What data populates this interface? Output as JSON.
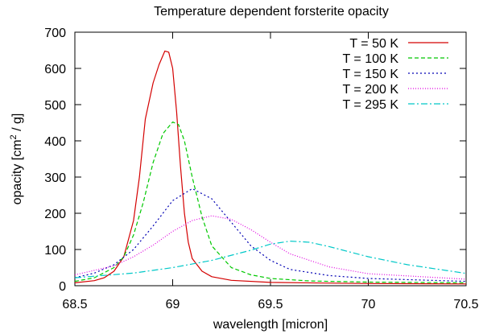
{
  "chart_data": {
    "type": "line",
    "title": "Temperature dependent forsterite opacity",
    "xlabel": "wavelength [micron]",
    "ylabel_main": "opacity [cm",
    "ylabel_sup": "2",
    "ylabel_tail": " / g]",
    "xlim": [
      68.5,
      70.5
    ],
    "ylim": [
      0,
      700
    ],
    "xticks": [
      68.5,
      69,
      69.5,
      70,
      70.5
    ],
    "xtick_labels": [
      "68.5",
      "69",
      "69.5",
      "70",
      "70.5"
    ],
    "yticks": [
      0,
      100,
      200,
      300,
      400,
      500,
      600,
      700
    ],
    "ytick_labels": [
      "0",
      "100",
      "200",
      "300",
      "400",
      "500",
      "600",
      "700"
    ],
    "legend_position": "top-right",
    "series": [
      {
        "name": "T = 50 K",
        "color": "#d40000",
        "dash": "",
        "points": [
          [
            68.5,
            8
          ],
          [
            68.6,
            14
          ],
          [
            68.65,
            22
          ],
          [
            68.7,
            40
          ],
          [
            68.75,
            80
          ],
          [
            68.8,
            180
          ],
          [
            68.83,
            300
          ],
          [
            68.86,
            460
          ],
          [
            68.9,
            560
          ],
          [
            68.93,
            610
          ],
          [
            68.96,
            648
          ],
          [
            68.98,
            645
          ],
          [
            69.0,
            600
          ],
          [
            69.02,
            480
          ],
          [
            69.04,
            330
          ],
          [
            69.06,
            200
          ],
          [
            69.08,
            120
          ],
          [
            69.1,
            75
          ],
          [
            69.15,
            40
          ],
          [
            69.2,
            25
          ],
          [
            69.3,
            15
          ],
          [
            69.5,
            9
          ],
          [
            70.0,
            6
          ],
          [
            70.5,
            5
          ]
        ]
      },
      {
        "name": "T = 100 K",
        "color": "#00c800",
        "dash": "5,3",
        "points": [
          [
            68.5,
            12
          ],
          [
            68.6,
            22
          ],
          [
            68.7,
            50
          ],
          [
            68.75,
            80
          ],
          [
            68.8,
            140
          ],
          [
            68.85,
            230
          ],
          [
            68.9,
            340
          ],
          [
            68.95,
            420
          ],
          [
            69.0,
            452
          ],
          [
            69.03,
            445
          ],
          [
            69.06,
            400
          ],
          [
            69.1,
            300
          ],
          [
            69.15,
            190
          ],
          [
            69.2,
            110
          ],
          [
            69.3,
            50
          ],
          [
            69.4,
            30
          ],
          [
            69.5,
            20
          ],
          [
            69.7,
            13
          ],
          [
            70.0,
            10
          ],
          [
            70.5,
            8
          ]
        ]
      },
      {
        "name": "T = 150 K",
        "color": "#0000b4",
        "dash": "2,3",
        "points": [
          [
            68.5,
            22
          ],
          [
            68.6,
            35
          ],
          [
            68.7,
            58
          ],
          [
            68.8,
            100
          ],
          [
            68.9,
            165
          ],
          [
            69.0,
            235
          ],
          [
            69.1,
            268
          ],
          [
            69.2,
            240
          ],
          [
            69.3,
            175
          ],
          [
            69.4,
            110
          ],
          [
            69.5,
            70
          ],
          [
            69.6,
            45
          ],
          [
            69.8,
            28
          ],
          [
            70.0,
            20
          ],
          [
            70.5,
            12
          ]
        ]
      },
      {
        "name": "T = 200 K",
        "color": "#e000e0",
        "dash": "1,2",
        "points": [
          [
            68.5,
            30
          ],
          [
            68.7,
            55
          ],
          [
            68.8,
            80
          ],
          [
            68.9,
            112
          ],
          [
            69.0,
            150
          ],
          [
            69.1,
            180
          ],
          [
            69.2,
            193
          ],
          [
            69.3,
            183
          ],
          [
            69.4,
            155
          ],
          [
            69.5,
            120
          ],
          [
            69.6,
            88
          ],
          [
            69.8,
            52
          ],
          [
            70.0,
            33
          ],
          [
            70.5,
            18
          ]
        ]
      },
      {
        "name": "T = 295 K",
        "color": "#00c8c8",
        "dash": "8,3,2,3",
        "points": [
          [
            68.5,
            22
          ],
          [
            68.8,
            35
          ],
          [
            69.0,
            50
          ],
          [
            69.2,
            70
          ],
          [
            69.4,
            98
          ],
          [
            69.5,
            115
          ],
          [
            69.6,
            123
          ],
          [
            69.7,
            120
          ],
          [
            69.8,
            108
          ],
          [
            70.0,
            80
          ],
          [
            70.2,
            58
          ],
          [
            70.4,
            42
          ],
          [
            70.5,
            34
          ]
        ]
      }
    ]
  }
}
